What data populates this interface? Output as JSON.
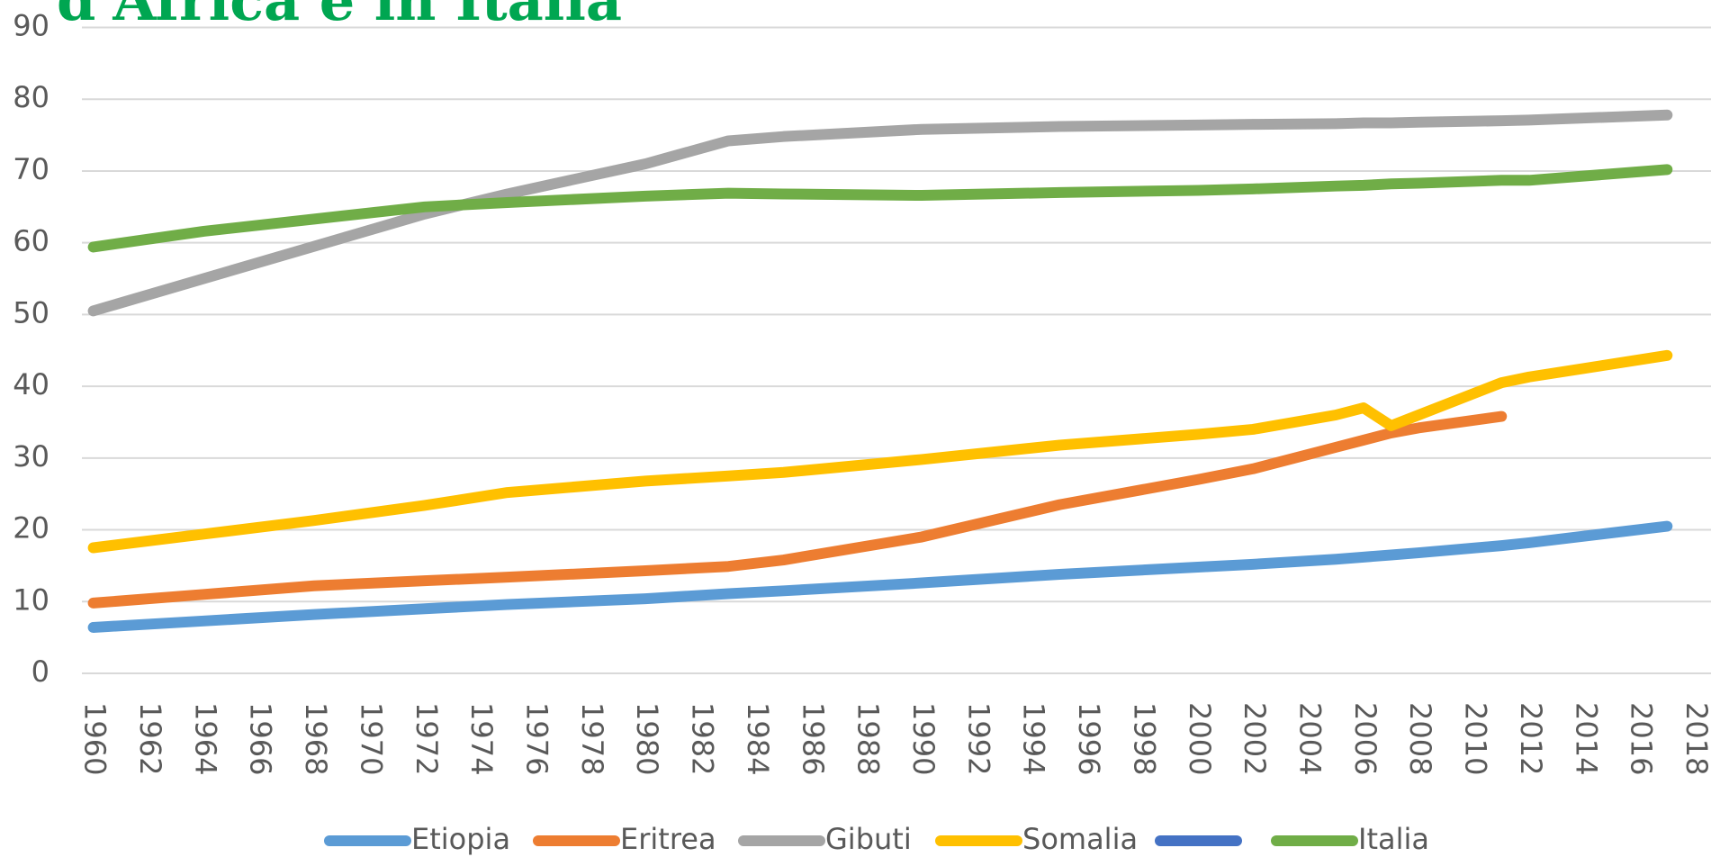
{
  "chart_data": {
    "type": "line",
    "title": "d'Africa e in Italia",
    "x": [
      1960,
      1964,
      1968,
      1972,
      1975,
      1980,
      1983,
      1985,
      1990,
      1995,
      2000,
      2002,
      2005,
      2006,
      2007,
      2008,
      2011,
      2012,
      2017
    ],
    "xlim": [
      1960,
      2018
    ],
    "xticks": [
      1960,
      1962,
      1964,
      1966,
      1968,
      1970,
      1972,
      1974,
      1976,
      1978,
      1980,
      1982,
      1984,
      1986,
      1988,
      1990,
      1992,
      1994,
      1996,
      1998,
      2000,
      2002,
      2004,
      2006,
      2008,
      2010,
      2012,
      2014,
      2016,
      2018
    ],
    "ylim": [
      0,
      90
    ],
    "yticks": [
      0,
      10,
      20,
      30,
      40,
      50,
      60,
      70,
      80,
      90
    ],
    "grid": true,
    "series": [
      {
        "name": "Etiopia",
        "color": "#5b9bd5",
        "values": [
          6.4,
          7.3,
          8.2,
          9.0,
          9.6,
          10.4,
          11.1,
          11.5,
          12.6,
          13.8,
          14.8,
          15.2,
          15.9,
          16.2,
          16.5,
          16.8,
          17.8,
          18.2,
          20.5
        ]
      },
      {
        "name": "Eritrea",
        "color": "#ed7d31",
        "values": [
          9.8,
          11.0,
          12.2,
          12.9,
          13.4,
          14.3,
          14.9,
          15.8,
          19.0,
          23.5,
          27.0,
          28.5,
          31.5,
          32.5,
          33.5,
          34.2,
          35.8,
          null,
          null
        ]
      },
      {
        "name": "Gibuti",
        "color": "#a5a5a5",
        "values": [
          50.5,
          55.0,
          59.5,
          64.0,
          66.8,
          71.0,
          74.2,
          74.8,
          75.8,
          76.2,
          76.4,
          76.5,
          76.6,
          76.7,
          76.7,
          76.8,
          77.0,
          77.1,
          77.8
        ]
      },
      {
        "name": "Somalia",
        "color": "#ffc000",
        "values": [
          17.5,
          19.4,
          21.3,
          23.4,
          25.2,
          26.8,
          27.5,
          28.0,
          29.8,
          31.8,
          33.3,
          34.0,
          36.0,
          37.0,
          34.5,
          36.0,
          40.5,
          41.3,
          44.3
        ]
      },
      {
        "color": "#4472c4",
        "values": [
          null,
          null,
          null,
          null,
          null,
          null,
          null,
          null,
          null,
          null,
          null,
          null,
          null,
          null,
          null,
          null,
          null,
          null,
          null
        ]
      },
      {
        "name": "Italia",
        "color": "#70ad47",
        "values": [
          59.4,
          61.6,
          63.3,
          65.0,
          65.6,
          66.5,
          66.9,
          66.8,
          66.6,
          67.0,
          67.3,
          67.5,
          67.9,
          68.0,
          68.2,
          68.3,
          68.7,
          68.7,
          70.2
        ]
      }
    ]
  }
}
